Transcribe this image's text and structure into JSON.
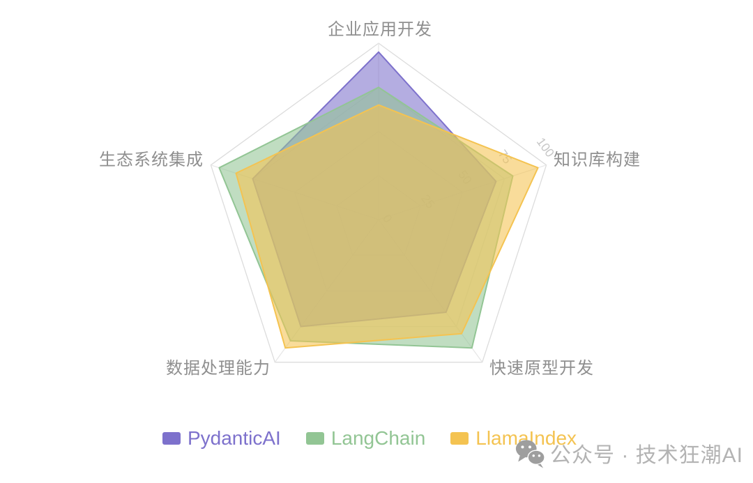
{
  "chart_data": {
    "type": "radar",
    "title": "",
    "max": 100,
    "tick_labels": [
      "0",
      "25",
      "50",
      "75",
      "100"
    ],
    "indicators": [
      {
        "name": "企业应用开发",
        "max": 100
      },
      {
        "name": "知识库构建",
        "max": 100
      },
      {
        "name": "快速原型开发",
        "max": 100
      },
      {
        "name": "数据处理能力",
        "max": 100
      },
      {
        "name": "生态系统集成",
        "max": 100
      }
    ],
    "series": [
      {
        "name": "PydanticAI",
        "color": "#7d71cc",
        "values": [
          95,
          70,
          65,
          75,
          75
        ]
      },
      {
        "name": "LangChain",
        "color": "#92c594",
        "values": [
          75,
          80,
          90,
          85,
          95
        ]
      },
      {
        "name": "LlamaIndex",
        "color": "#f4c351",
        "values": [
          65,
          95,
          80,
          90,
          85
        ]
      }
    ],
    "fill_opacity": 0.58,
    "grid_color": "#dcdcdc",
    "inner_grid_color": "#e7e7e7",
    "axis_name_color": "#8f8f8f",
    "tick_label_color": "#c6c6c6",
    "legend_position": "bottom"
  },
  "legend": {
    "items": [
      "PydanticAI",
      "LangChain",
      "LlamaIndex"
    ]
  },
  "watermark": {
    "icon": "wechat-icon",
    "text": "公众号 · 技术狂潮AI"
  }
}
